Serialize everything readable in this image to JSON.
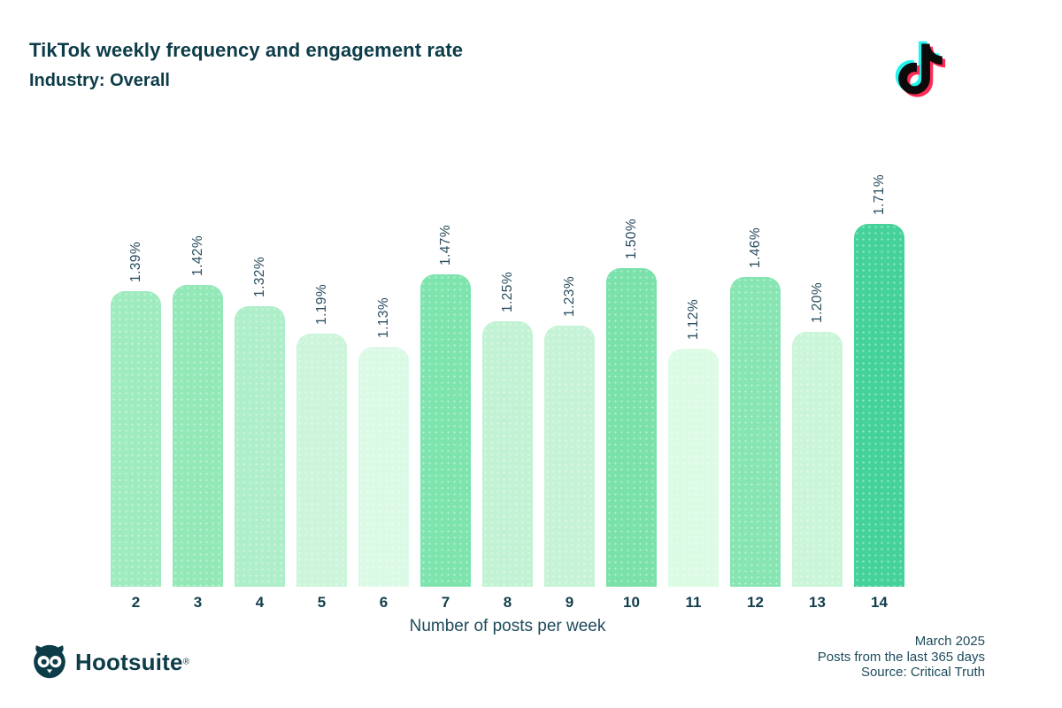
{
  "header": {
    "title": "TikTok weekly frequency and engagement rate",
    "subtitle": "Industry: Overall"
  },
  "logo": {
    "name": "TikTok",
    "note_black": "#0b0b0b",
    "note_cyan": "#25f4ee",
    "note_red": "#fe2c55"
  },
  "chart_data": {
    "type": "bar",
    "title": "TikTok weekly frequency and engagement rate",
    "subtitle": "Industry: Overall",
    "categories": [
      "2",
      "3",
      "4",
      "5",
      "6",
      "7",
      "8",
      "9",
      "10",
      "11",
      "12",
      "13",
      "14"
    ],
    "values": [
      1.39,
      1.42,
      1.32,
      1.19,
      1.13,
      1.47,
      1.25,
      1.23,
      1.5,
      1.12,
      1.46,
      1.2,
      1.71
    ],
    "value_labels": [
      "1.39%",
      "1.42%",
      "1.32%",
      "1.19%",
      "1.13%",
      "1.47%",
      "1.25%",
      "1.23%",
      "1.50%",
      "1.12%",
      "1.46%",
      "1.20%",
      "1.71%"
    ],
    "bar_colors": [
      "#9febc0",
      "#93e8b8",
      "#aeeec9",
      "#ccf5db",
      "#dbfae6",
      "#7de4ae",
      "#c2f2d4",
      "#c6f3d7",
      "#79e1a9",
      "#dcfbe5",
      "#87e5b3",
      "#cbf5d9",
      "#45d29a"
    ],
    "xlabel": "Number of posts per week",
    "ylabel": "",
    "ylim": [
      0,
      1.8
    ],
    "grid": false,
    "legend": false,
    "value_label_rotation": -90
  },
  "footer": {
    "brand": "Hootsuite",
    "registered_mark": "®",
    "meta_lines": [
      "March 2025",
      "Posts from the last 365 days",
      "Source: Critical Truth"
    ]
  },
  "colors": {
    "background": "#ffffff",
    "text_dark": "#0d3c49",
    "value_label_text": "#2a4d5f",
    "bar_max_color": "#45d29a",
    "bar_min_color": "#dcfbe5"
  }
}
